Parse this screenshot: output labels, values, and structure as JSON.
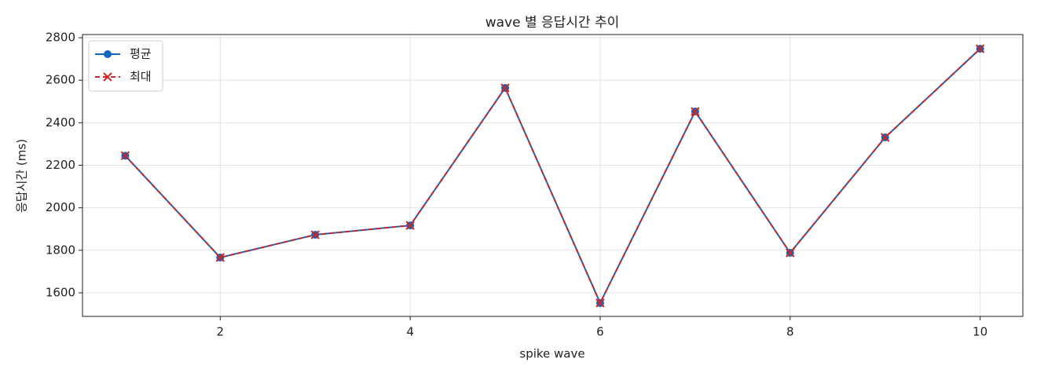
{
  "chart_data": {
    "type": "line",
    "title": "wave 별 응답시간 추이",
    "x_label": "spike wave",
    "y_label": "응답시간 (ms)",
    "x": [
      1,
      2,
      3,
      4,
      5,
      6,
      7,
      8,
      9,
      10
    ],
    "series": [
      {
        "name": "평균",
        "color": "#1565c0",
        "marker": "circle",
        "dash": false,
        "values": [
          2245,
          1766,
          1873,
          1917,
          2564,
          1552,
          2453,
          1788,
          2331,
          2748
        ]
      },
      {
        "name": "최대",
        "color": "#c62828",
        "marker": "x",
        "dash": true,
        "values": [
          2245,
          1766,
          1873,
          1917,
          2564,
          1552,
          2453,
          1788,
          2331,
          2748
        ]
      }
    ],
    "xlim": [
      0.55,
      10.45
    ],
    "xticks": [
      2,
      4,
      6,
      8,
      10
    ],
    "ylim": [
      1489,
      2815
    ],
    "yticks": [
      1600,
      1800,
      2000,
      2200,
      2400,
      2600,
      2800
    ],
    "grid": true,
    "legend": "upper left"
  }
}
